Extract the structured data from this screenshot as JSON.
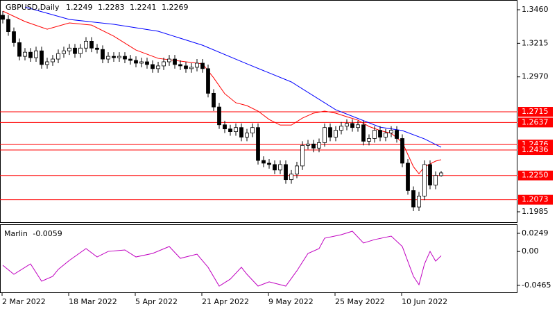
{
  "chart_data": [
    {
      "type": "candlestick",
      "title": "GBPUSD,Daily",
      "categories": [
        "2 Mar 2022",
        null,
        null,
        null,
        null,
        null,
        null,
        null,
        null,
        null,
        null,
        null,
        "18 Mar 2022",
        null,
        null,
        null,
        null,
        null,
        null,
        null,
        null,
        null,
        null,
        null,
        "5 Apr 2022",
        null,
        null,
        null,
        null,
        null,
        null,
        null,
        null,
        null,
        null,
        null,
        "21 Apr 2022",
        null,
        null,
        null,
        null,
        null,
        null,
        null,
        null,
        null,
        null,
        null,
        "9 May 2022",
        null,
        null,
        null,
        null,
        null,
        null,
        null,
        null,
        null,
        null,
        null,
        "25 May 2022",
        null,
        null,
        null,
        null,
        null,
        null,
        null,
        null,
        null,
        null,
        null,
        "10 Jun 2022",
        null,
        null,
        null,
        null,
        null,
        null,
        null
      ],
      "open": [
        1.342,
        1.339,
        1.33,
        1.322,
        1.312,
        1.315,
        1.311,
        1.316,
        1.306,
        1.308,
        1.31,
        1.314,
        1.316,
        1.318,
        1.314,
        1.318,
        1.323,
        1.318,
        1.317,
        1.31,
        1.312,
        1.311,
        1.312,
        1.31,
        1.309,
        1.307,
        1.308,
        1.306,
        1.303,
        1.305,
        1.308,
        1.31,
        1.306,
        1.305,
        1.303,
        1.304,
        1.307,
        1.303,
        1.285,
        1.275,
        1.262,
        1.259,
        1.257,
        1.26,
        1.253,
        1.256,
        1.26,
        1.236,
        1.234,
        1.233,
        1.229,
        1.233,
        1.222,
        1.226,
        1.232,
        1.247,
        1.248,
        1.245,
        1.249,
        1.26,
        1.253,
        1.258,
        1.261,
        1.263,
        1.26,
        1.262,
        1.25,
        1.252,
        1.258,
        1.253,
        1.256,
        1.258,
        1.252,
        1.234,
        1.214,
        1.202,
        1.21,
        1.233,
        1.218,
        1.2249
      ],
      "high": [
        1.345,
        1.342,
        1.333,
        1.325,
        1.318,
        1.318,
        1.319,
        1.319,
        1.311,
        1.313,
        1.317,
        1.319,
        1.321,
        1.321,
        1.321,
        1.326,
        1.326,
        1.321,
        1.32,
        1.315,
        1.315,
        1.315,
        1.315,
        1.313,
        1.312,
        1.311,
        1.311,
        1.309,
        1.308,
        1.311,
        1.313,
        1.313,
        1.309,
        1.308,
        1.307,
        1.31,
        1.31,
        1.306,
        1.288,
        1.278,
        1.265,
        1.262,
        1.263,
        1.263,
        1.259,
        1.263,
        1.263,
        1.239,
        1.237,
        1.236,
        1.236,
        1.236,
        1.229,
        1.235,
        1.25,
        1.251,
        1.251,
        1.252,
        1.263,
        1.263,
        1.261,
        1.264,
        1.266,
        1.266,
        1.265,
        1.265,
        1.255,
        1.261,
        1.261,
        1.259,
        1.261,
        1.261,
        1.255,
        1.237,
        1.217,
        1.213,
        1.236,
        1.236,
        1.228,
        1.2283
      ],
      "low": [
        1.336,
        1.327,
        1.319,
        1.309,
        1.309,
        1.308,
        1.308,
        1.303,
        1.303,
        1.305,
        1.307,
        1.311,
        1.313,
        1.311,
        1.311,
        1.315,
        1.315,
        1.314,
        1.307,
        1.307,
        1.308,
        1.308,
        1.307,
        1.306,
        1.304,
        1.304,
        1.303,
        1.3,
        1.3,
        1.302,
        1.305,
        1.303,
        1.302,
        1.3,
        1.3,
        1.301,
        1.3,
        1.282,
        1.272,
        1.259,
        1.256,
        1.254,
        1.254,
        1.25,
        1.25,
        1.253,
        1.233,
        1.231,
        1.23,
        1.226,
        1.226,
        1.219,
        1.219,
        1.223,
        1.229,
        1.244,
        1.242,
        1.242,
        1.246,
        1.25,
        1.25,
        1.255,
        1.258,
        1.257,
        1.257,
        1.247,
        1.247,
        1.249,
        1.25,
        1.25,
        1.253,
        1.249,
        1.231,
        1.211,
        1.199,
        1.199,
        1.207,
        1.215,
        1.215,
        1.2241
      ],
      "close": [
        1.339,
        1.33,
        1.322,
        1.312,
        1.315,
        1.311,
        1.316,
        1.306,
        1.308,
        1.31,
        1.314,
        1.316,
        1.318,
        1.314,
        1.318,
        1.323,
        1.318,
        1.317,
        1.31,
        1.312,
        1.311,
        1.312,
        1.31,
        1.309,
        1.307,
        1.308,
        1.306,
        1.303,
        1.305,
        1.308,
        1.31,
        1.306,
        1.305,
        1.303,
        1.304,
        1.307,
        1.303,
        1.285,
        1.275,
        1.262,
        1.259,
        1.257,
        1.26,
        1.253,
        1.256,
        1.26,
        1.236,
        1.234,
        1.233,
        1.229,
        1.233,
        1.222,
        1.226,
        1.232,
        1.247,
        1.248,
        1.245,
        1.249,
        1.26,
        1.253,
        1.258,
        1.261,
        1.263,
        1.26,
        1.262,
        1.25,
        1.252,
        1.258,
        1.253,
        1.256,
        1.258,
        1.252,
        1.234,
        1.214,
        1.202,
        1.21,
        1.233,
        1.218,
        1.225,
        1.2269
      ],
      "up_color": "#ffffff",
      "down_color": "#000000",
      "ylim": [
        1.1909,
        1.3521
      ],
      "yticks": [
        {
          "value": 1.346,
          "label": "1.3460"
        },
        1.3215,
        {
          "value": 1.297,
          "label": "1.2970"
        },
        1.1985
      ],
      "levels": [
        1.2715,
        1.2637,
        1.2476,
        1.2436,
        {
          "value": 1.225,
          "label": "1.2250"
        },
        1.2073
      ],
      "level_color": "#ff0000",
      "lines": [
        {
          "color": "#ff0000",
          "x": [
            0,
            4,
            8,
            12,
            16,
            20,
            24,
            28,
            32,
            36,
            38,
            40,
            42,
            44,
            46,
            48,
            50,
            52,
            54,
            56,
            58,
            60,
            62,
            64,
            66,
            68,
            70,
            72,
            74,
            75,
            76,
            77,
            78,
            79
          ],
          "values": [
            1.345,
            1.3374,
            1.3318,
            1.3364,
            1.3348,
            1.3267,
            1.3166,
            1.3105,
            1.3085,
            1.3065,
            1.2963,
            1.2847,
            1.2781,
            1.276,
            1.272,
            1.2659,
            1.2618,
            1.2618,
            1.2669,
            1.2705,
            1.272,
            1.2705,
            1.2679,
            1.2654,
            1.2608,
            1.2578,
            1.2558,
            1.2492,
            1.2314,
            1.2263,
            1.2314,
            1.2334,
            1.2355,
            1.2365
          ]
        },
        {
          "color": "#0000ff",
          "x": [
            4,
            12,
            20,
            28,
            36,
            44,
            52,
            60,
            68,
            72,
            76,
            79
          ],
          "values": [
            1.348,
            1.3389,
            1.3354,
            1.3303,
            1.3201,
            1.3065,
            1.2933,
            1.273,
            1.2603,
            1.2578,
            1.2517,
            1.2456
          ]
        }
      ]
    },
    {
      "type": "line",
      "title": "Marlin",
      "color": "#c000c0",
      "x": [
        0,
        2,
        5,
        7,
        9,
        10,
        12,
        15,
        17,
        19,
        22,
        24,
        27,
        30,
        32,
        35,
        37,
        39,
        41,
        43,
        44,
        46,
        48,
        51,
        53,
        55,
        57,
        58,
        61,
        63,
        65,
        67,
        70,
        72,
        74,
        75,
        76,
        77,
        78,
        79
      ],
      "values": [
        -0.0189,
        -0.0313,
        -0.017,
        -0.0408,
        -0.0341,
        -0.0246,
        -0.0122,
        0.004,
        -0.0075,
        0.0001,
        0.0021,
        -0.0075,
        -0.0027,
        0.0068,
        -0.0094,
        -0.0037,
        -0.0217,
        -0.0475,
        -0.0379,
        -0.0217,
        -0.0313,
        -0.0475,
        -0.0417,
        -0.0475,
        -0.0265,
        -0.0027,
        0.004,
        0.0182,
        0.023,
        0.0278,
        0.0116,
        0.0163,
        0.0211,
        0.0068,
        -0.0341,
        -0.0456,
        -0.017,
        0.0001,
        -0.0132,
        -0.0059
      ],
      "ylim": [
        -0.0551,
        0.0354
      ],
      "yticks": [
        0.0249,
        {
          "value": 0,
          "label": "0.00"
        },
        -0.0465
      ]
    }
  ]
}
